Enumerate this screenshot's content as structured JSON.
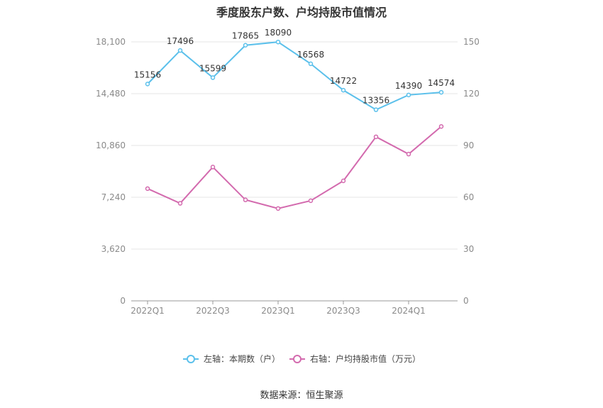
{
  "chart_data": {
    "type": "line",
    "title": "季度股东户数、户均持股市值情况",
    "categories": [
      "2022Q1",
      "2022Q2",
      "2022Q3",
      "2022Q4",
      "2023Q1",
      "2023Q2",
      "2023Q3",
      "2023Q4",
      "2024Q1",
      "2024Q2"
    ],
    "x_tick_labels": [
      "2022Q1",
      "2022Q3",
      "2023Q1",
      "2023Q3",
      "2024Q1"
    ],
    "left_axis": {
      "ticks": [
        "0",
        "3,620",
        "7,240",
        "10,860",
        "14,480",
        "18,100"
      ],
      "min": 0,
      "max": 18100
    },
    "right_axis": {
      "ticks": [
        "0",
        "30",
        "60",
        "90",
        "120",
        "150"
      ],
      "min": 0,
      "max": 150
    },
    "series": [
      {
        "name": "左轴：本期数（户）",
        "axis": "left",
        "color": "#5bc0eb",
        "values": [
          15156,
          17496,
          15599,
          17865,
          18090,
          16568,
          14722,
          13356,
          14390,
          14574
        ],
        "labels": [
          "15156",
          "17496",
          "15599",
          "17865",
          "18090",
          "16568",
          "14722",
          "13356",
          "14390",
          "14574"
        ]
      },
      {
        "name": "右轴：户均持股市值（万元）",
        "axis": "right",
        "color": "#d36aae",
        "values": [
          65.0,
          56.5,
          77.5,
          58.5,
          53.5,
          58.0,
          69.5,
          95.0,
          85.0,
          101.0
        ]
      }
    ],
    "grid": true,
    "legend": "bottom-center"
  },
  "source": "数据来源：恒生聚源"
}
